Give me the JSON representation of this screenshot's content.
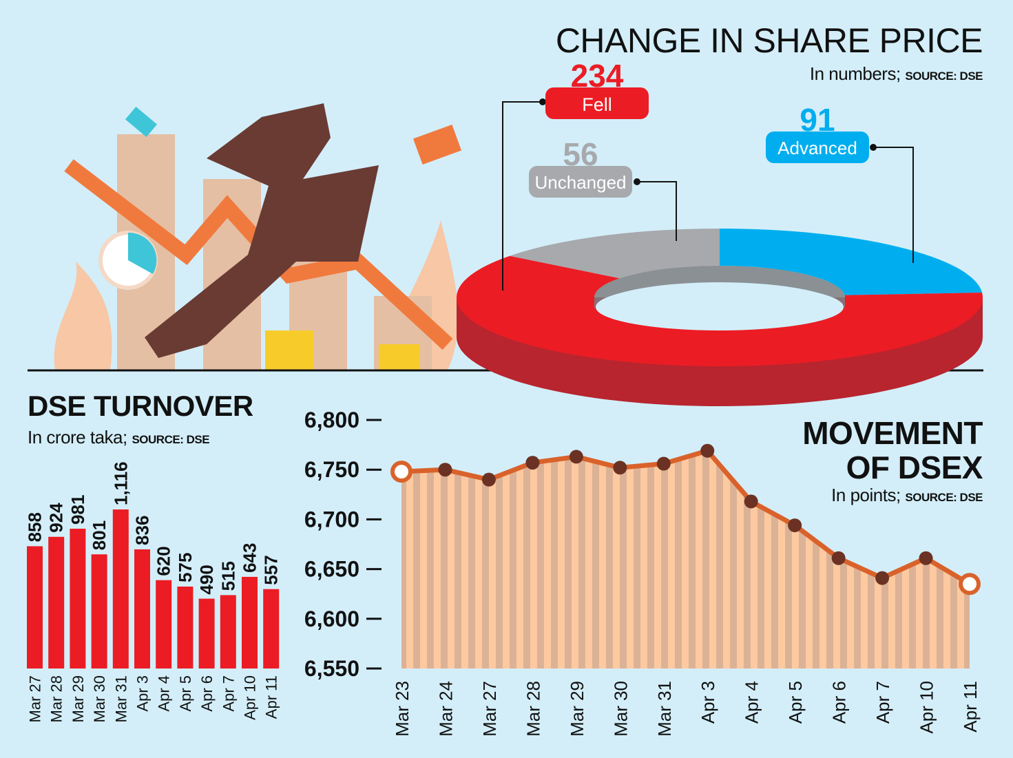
{
  "colors": {
    "background": "#d3eef9",
    "fell": "#ec1c24",
    "unchanged": "#a7a9ac",
    "advanced": "#00aeef",
    "bar": "#ec1c24",
    "line": "#d9622b",
    "area": "#fdc9a0",
    "marker": "#6b3224"
  },
  "chart_data": [
    {
      "type": "pie",
      "title": "CHANGE IN SHARE PRICE",
      "subtitle": "In numbers;",
      "source": "SOURCE: DSE",
      "slices": [
        {
          "label": "Advanced",
          "value": 91
        },
        {
          "label": "Fell",
          "value": 234
        },
        {
          "label": "Unchanged",
          "value": 56
        }
      ]
    },
    {
      "type": "bar",
      "title": "DSE TURNOVER",
      "subtitle": "In crore taka;",
      "source": "SOURCE: DSE",
      "categories": [
        "Mar 27",
        "Mar 28",
        "Mar 29",
        "Mar 30",
        "Mar 31",
        "Apr 3",
        "Apr 4",
        "Apr 5",
        "Apr 6",
        "Apr 7",
        "Apr 10",
        "Apr 11"
      ],
      "values": [
        858,
        924,
        981,
        801,
        1116,
        836,
        620,
        575,
        490,
        515,
        643,
        557
      ],
      "value_labels": [
        "858",
        "924",
        "981",
        "801",
        "1,116",
        "836",
        "620",
        "575",
        "490",
        "515",
        "643",
        "557"
      ]
    },
    {
      "type": "line",
      "title": "MOVEMENT OF DSEX",
      "subtitle": "In points;",
      "source": "SOURCE: DSE",
      "categories": [
        "Mar 23",
        "Mar 24",
        "Mar 27",
        "Mar 28",
        "Mar 29",
        "Mar 30",
        "Mar 31",
        "Apr 3",
        "Apr 4",
        "Apr 5",
        "Apr 6",
        "Apr 7",
        "Apr 10",
        "Apr 11"
      ],
      "values": [
        6748,
        6750,
        6740,
        6757,
        6763,
        6752,
        6756,
        6769,
        6718,
        6694,
        6661,
        6641,
        6661,
        6635
      ],
      "ylim": [
        6550,
        6800
      ],
      "yticks": [
        6550,
        6600,
        6650,
        6700,
        6750,
        6800
      ],
      "ytick_labels": [
        "6,550",
        "6,600",
        "6,650",
        "6,700",
        "6,750",
        "6,800"
      ]
    }
  ]
}
